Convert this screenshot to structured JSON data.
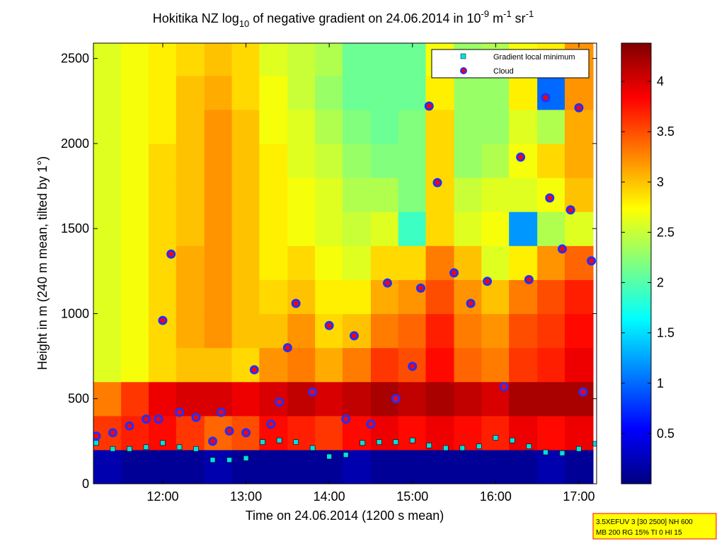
{
  "chart_data": {
    "type": "heatmap",
    "title": [
      "Hokitika NZ log",
      "10",
      " of negative gradient on 24.06.2014 in 10",
      "-9",
      " m",
      "-1",
      " sr",
      "-1"
    ],
    "xlabel": "Time on 24.06.2014 (1200 s mean)",
    "ylabel": "Height in m (240 m mean, tilted by 1°)",
    "xlim": [
      11.167,
      17.213
    ],
    "ylim": [
      0,
      2590
    ],
    "xticks": [
      {
        "value": 12,
        "label": "12:00"
      },
      {
        "value": 13,
        "label": "13:00"
      },
      {
        "value": 14,
        "label": "14:00"
      },
      {
        "value": 15,
        "label": "15:00"
      },
      {
        "value": 16,
        "label": "16:00"
      },
      {
        "value": 17,
        "label": "17:00"
      }
    ],
    "yticks": [
      0,
      500,
      1000,
      1500,
      2000,
      2500
    ],
    "colormap": "jet",
    "clim": [
      0,
      4.38
    ],
    "cticks": [
      0.5,
      1,
      1.5,
      2,
      2.5,
      3,
      3.5,
      4
    ],
    "heat_x": [
      11.33,
      11.67,
      12.0,
      12.33,
      12.67,
      13.0,
      13.33,
      13.67,
      14.0,
      14.33,
      14.67,
      15.0,
      15.33,
      15.67,
      16.0,
      16.33,
      16.67,
      17.0
    ],
    "heat_y": [
      100,
      300,
      500,
      700,
      900,
      1100,
      1300,
      1500,
      1700,
      1900,
      2100,
      2300,
      2500
    ],
    "z": [
      [
        0.2,
        0.1,
        0.1,
        0.1,
        0.2,
        0.1,
        0.1,
        0.1,
        0.1,
        0.2,
        0.1,
        0.1,
        0.1,
        0.1,
        0.1,
        0.1,
        0.2,
        0.1
      ],
      [
        3.6,
        3.7,
        3.8,
        3.6,
        3.4,
        3.5,
        3.8,
        3.7,
        3.6,
        3.8,
        3.9,
        3.8,
        3.9,
        3.8,
        3.7,
        3.9,
        3.8,
        3.9
      ],
      [
        3.3,
        3.6,
        3.9,
        4.0,
        4.0,
        3.9,
        4.0,
        4.1,
        4.0,
        4.1,
        4.2,
        4.1,
        4.2,
        4.1,
        4.0,
        4.2,
        4.2,
        4.2
      ],
      [
        2.6,
        2.7,
        2.9,
        3.0,
        3.0,
        2.9,
        3.2,
        3.3,
        3.1,
        3.3,
        3.6,
        3.5,
        3.8,
        3.4,
        3.3,
        3.6,
        3.7,
        3.9
      ],
      [
        2.6,
        2.7,
        2.9,
        3.1,
        3.2,
        3.0,
        3.0,
        3.2,
        2.9,
        3.0,
        3.3,
        3.4,
        3.7,
        3.3,
        3.2,
        3.5,
        3.6,
        3.8
      ],
      [
        2.6,
        2.7,
        2.9,
        3.1,
        3.2,
        3.0,
        2.9,
        3.0,
        2.8,
        2.8,
        3.1,
        3.2,
        3.5,
        3.2,
        3.0,
        3.3,
        3.5,
        3.7
      ],
      [
        2.6,
        2.7,
        2.9,
        3.1,
        3.2,
        3.0,
        2.8,
        2.9,
        2.7,
        2.6,
        2.9,
        2.9,
        3.3,
        3.0,
        2.6,
        2.8,
        3.2,
        3.4
      ],
      [
        2.6,
        2.7,
        2.9,
        3.0,
        3.2,
        3.0,
        2.8,
        2.7,
        2.6,
        2.5,
        2.6,
        1.9,
        2.9,
        2.6,
        2.7,
        1.2,
        2.4,
        2.6
      ],
      [
        2.6,
        2.7,
        2.9,
        3.0,
        3.2,
        3.0,
        2.8,
        2.7,
        2.6,
        2.4,
        2.4,
        2.2,
        2.9,
        2.5,
        2.6,
        2.6,
        2.7,
        3.0
      ],
      [
        2.6,
        2.7,
        2.9,
        3.0,
        3.2,
        3.0,
        2.8,
        2.6,
        2.5,
        2.3,
        2.2,
        2.2,
        2.9,
        2.3,
        2.4,
        2.7,
        2.9,
        3.1
      ],
      [
        2.6,
        2.7,
        2.8,
        3.0,
        3.2,
        3.0,
        2.7,
        2.6,
        2.4,
        2.2,
        2.1,
        2.2,
        2.9,
        2.3,
        2.3,
        2.6,
        2.4,
        3.1
      ],
      [
        2.6,
        2.7,
        2.8,
        3.0,
        3.1,
        2.9,
        2.7,
        2.5,
        2.3,
        2.1,
        2.1,
        2.1,
        2.8,
        2.3,
        2.3,
        2.8,
        1.0,
        3.2
      ],
      [
        2.6,
        2.7,
        2.8,
        2.9,
        3.0,
        2.9,
        2.6,
        2.5,
        2.4,
        2.1,
        2.1,
        2.1,
        2.7,
        2.3,
        2.4,
        2.7,
        2.8,
        3.2
      ]
    ],
    "series": [
      {
        "name": "Gradient local minimum",
        "type": "scatter",
        "marker": "square",
        "color": "#00e0e0",
        "x": [
          11.2,
          11.4,
          11.6,
          11.8,
          12.0,
          12.2,
          12.4,
          12.6,
          12.8,
          13.0,
          13.2,
          13.4,
          13.6,
          13.8,
          14.0,
          14.2,
          14.4,
          14.6,
          14.8,
          15.0,
          15.2,
          15.4,
          15.6,
          15.8,
          16.0,
          16.2,
          16.4,
          16.6,
          16.8,
          17.0,
          17.2
        ],
        "values": [
          240,
          205,
          205,
          215,
          240,
          215,
          205,
          140,
          140,
          150,
          245,
          255,
          245,
          210,
          160,
          170,
          240,
          245,
          245,
          255,
          225,
          210,
          210,
          220,
          270,
          255,
          220,
          185,
          180,
          205,
          235
        ]
      },
      {
        "name": "Cloud",
        "type": "scatter",
        "marker": "circle",
        "color": "#ff0000",
        "x": [
          11.2,
          11.4,
          11.6,
          11.8,
          11.95,
          12.0,
          12.1,
          12.2,
          12.4,
          12.6,
          12.7,
          12.8,
          13.0,
          13.1,
          13.3,
          13.4,
          13.5,
          13.6,
          13.8,
          14.0,
          14.2,
          14.3,
          14.5,
          14.7,
          14.8,
          15.0,
          15.1,
          15.2,
          15.3,
          15.5,
          15.7,
          15.9,
          16.1,
          16.3,
          16.4,
          16.6,
          16.65,
          16.8,
          16.9,
          17.0,
          17.05,
          17.15
        ],
        "values": [
          280,
          300,
          340,
          380,
          380,
          960,
          1350,
          420,
          390,
          250,
          420,
          310,
          300,
          670,
          350,
          480,
          800,
          1060,
          540,
          930,
          380,
          870,
          350,
          1180,
          500,
          690,
          1150,
          2220,
          1770,
          1240,
          1060,
          1190,
          570,
          1920,
          1200,
          2270,
          1680,
          1380,
          1610,
          2210,
          540,
          1310
        ]
      }
    ],
    "legend": "upper right",
    "annotation": [
      "3.5XEFUV 3 [30 2500] NH 600",
      "MB 200 RG 15% TI 0 HI 15"
    ]
  }
}
